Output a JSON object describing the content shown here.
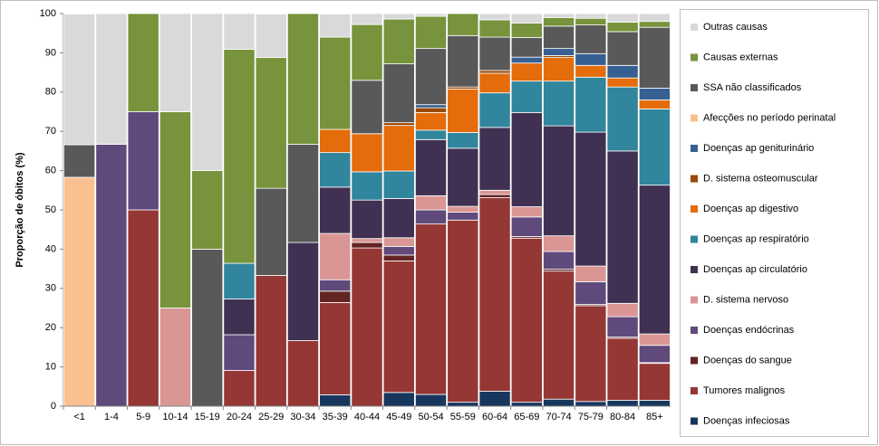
{
  "chart_data": {
    "type": "stacked_bar",
    "y_label": "Proporção de óbitos (%)",
    "categories": [
      "<1",
      "1-4",
      "5-9",
      "10-14",
      "15-19",
      "20-24",
      "25-29",
      "30-34",
      "35-39",
      "40-44",
      "45-49",
      "50-54",
      "55-59",
      "60-64",
      "65-69",
      "70-74",
      "75-79",
      "80-84",
      "85+"
    ],
    "ylim": [
      0,
      100
    ],
    "yticks": [
      0,
      10,
      20,
      30,
      40,
      50,
      60,
      70,
      80,
      90,
      100
    ],
    "grid": false,
    "legend": "right",
    "series": [
      {
        "name": "Doenças infeciosas",
        "color": "#17375e",
        "values": [
          0,
          0,
          0,
          0,
          0,
          0,
          0,
          0,
          2.9,
          0,
          3.5,
          3,
          1,
          3.8,
          1,
          1.8,
          1.2,
          1.5,
          1.5
        ]
      },
      {
        "name": "Tumores malignos",
        "color": "#953735",
        "values": [
          0,
          0,
          50,
          0,
          0,
          9.1,
          33.3,
          16.7,
          23.5,
          40.3,
          33.5,
          43.4,
          46.4,
          49.3,
          41.8,
          32.6,
          24.4,
          15.8,
          9.4
        ]
      },
      {
        "name": "Doenças do sangue",
        "color": "#632523",
        "values": [
          0,
          0,
          0,
          0,
          0,
          0,
          0,
          0,
          2.9,
          1.4,
          1.5,
          0,
          0,
          0.8,
          0.4,
          0.5,
          0.3,
          0.3,
          0.2
        ]
      },
      {
        "name": "Doenças endócrinas",
        "color": "#604a7b",
        "values": [
          0,
          66.7,
          25,
          0,
          0,
          9.1,
          0,
          0,
          2.9,
          0,
          2.2,
          3.6,
          2,
          0,
          5,
          4.5,
          5.8,
          5.2,
          4.4
        ]
      },
      {
        "name": "D. sistema nervoso",
        "color": "#d99694",
        "values": [
          0,
          0,
          0,
          25,
          0,
          0,
          0,
          0,
          11.8,
          1,
          2.2,
          3.6,
          1.5,
          1.1,
          2.6,
          4,
          4,
          3.4,
          2.9
        ]
      },
      {
        "name": "Doenças ap circulatório",
        "color": "#403152",
        "values": [
          0,
          0,
          0,
          0,
          0,
          9.1,
          0,
          25,
          11.8,
          9.8,
          10,
          14.3,
          14.8,
          16,
          24,
          28,
          34.1,
          38.8,
          37.9
        ]
      },
      {
        "name": "Doenças ap respiratório",
        "color": "#31859c",
        "values": [
          0,
          0,
          0,
          0,
          0,
          9.1,
          0,
          0,
          8.8,
          7.2,
          7,
          2.4,
          4,
          8.8,
          8,
          11.4,
          14,
          16.3,
          19.4
        ]
      },
      {
        "name": "Doenças ap digestivo",
        "color": "#e46c0a",
        "values": [
          0,
          0,
          0,
          0,
          0,
          0,
          0,
          0,
          5.9,
          9.7,
          11.6,
          4.5,
          11.1,
          5,
          4.6,
          6,
          3,
          2.3,
          2.3
        ]
      },
      {
        "name": "D. sistema osteomuscular",
        "color": "#984807",
        "values": [
          0,
          0,
          0,
          0,
          0,
          0,
          0,
          0,
          0,
          0,
          0.7,
          1.2,
          0.5,
          0.7,
          0,
          0.5,
          0,
          0,
          0
        ]
      },
      {
        "name": "Doenças ap geniturinário",
        "color": "#376092",
        "values": [
          0,
          0,
          0,
          0,
          0,
          0,
          0,
          0,
          0,
          0,
          0,
          0.8,
          0,
          0,
          1.5,
          1.8,
          3,
          3.2,
          3
        ]
      },
      {
        "name": "Afecções no período perinatal",
        "color": "#fac090",
        "values": [
          58.3,
          0,
          0,
          0,
          0,
          0,
          0,
          0,
          0,
          0,
          0,
          0,
          0,
          0,
          0,
          0,
          0,
          0,
          0
        ]
      },
      {
        "name": "SSA não classificados",
        "color": "#595959",
        "values": [
          8.3,
          0,
          0,
          0,
          40,
          0,
          22.2,
          25,
          0,
          13.6,
          15,
          14.3,
          13.1,
          8.5,
          5,
          5.7,
          7.3,
          8.6,
          15.5
        ]
      },
      {
        "name": "Causas externas",
        "color": "#77933c",
        "values": [
          0,
          0,
          25,
          50,
          20,
          54.5,
          33.3,
          33.3,
          23.5,
          14.2,
          11.4,
          8.2,
          5.6,
          4.4,
          3.7,
          2.2,
          1.7,
          2.4,
          1.5
        ]
      },
      {
        "name": "Outras causas",
        "color": "#d9d9d9",
        "values": [
          33.3,
          33.3,
          0,
          25,
          40,
          9.1,
          11.1,
          0,
          5.9,
          2.8,
          1.4,
          0.7,
          0,
          1.6,
          2.4,
          1,
          1.2,
          2.2,
          2
        ]
      }
    ]
  }
}
